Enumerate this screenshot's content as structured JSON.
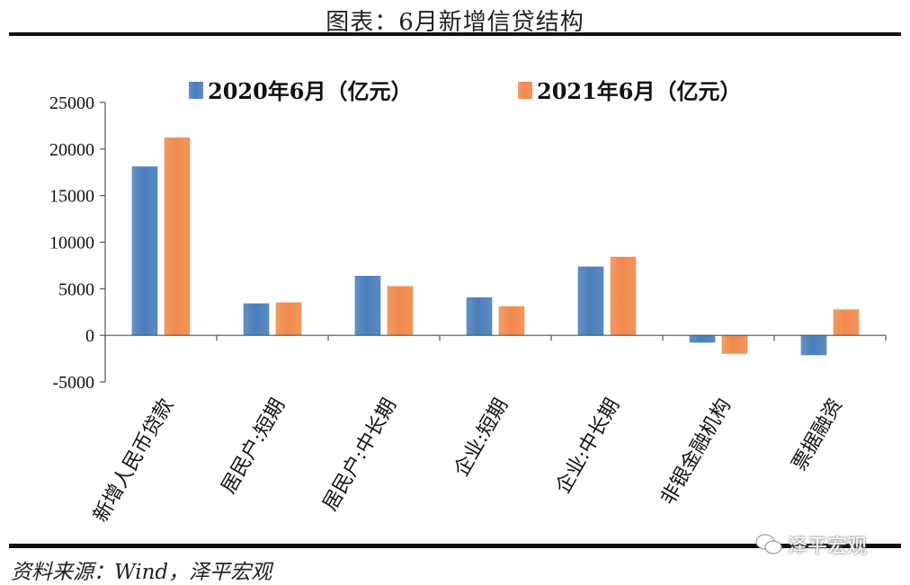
{
  "header": {
    "title": "图表：6月新增信贷结构"
  },
  "footer": {
    "source": "资料来源：Wind，泽平宏观",
    "watermark": "泽平宏观"
  },
  "colors": {
    "series1": "#4a7ebb",
    "series2": "#f08a4b"
  },
  "chart_data": {
    "type": "bar",
    "title": "图表：6月新增信贷结构",
    "xlabel": "",
    "ylabel": "",
    "ylim": [
      -5000,
      25000
    ],
    "yticks": [
      25000,
      20000,
      15000,
      10000,
      5000,
      0,
      -5000
    ],
    "grid": false,
    "legend_position": "top",
    "categories": [
      "新增人民币贷款",
      "居民户:短期",
      "居民户:中长期",
      "企业:短期",
      "企业:中长期",
      "非银金融机构",
      "票据融资"
    ],
    "series": [
      {
        "name": "2020年6月（亿元）",
        "values": [
          18100,
          3400,
          6350,
          4050,
          7350,
          -750,
          -2100
        ]
      },
      {
        "name": "2021年6月（亿元）",
        "values": [
          21200,
          3500,
          5250,
          3100,
          8400,
          -1950,
          2750
        ]
      }
    ]
  }
}
